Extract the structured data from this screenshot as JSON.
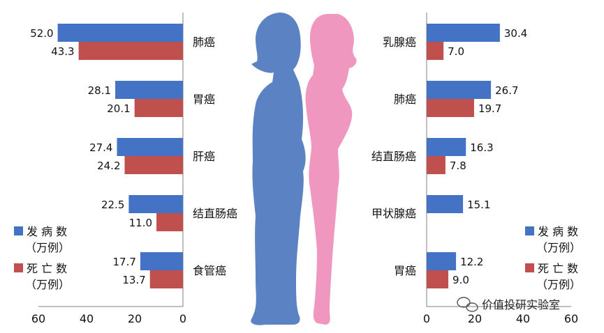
{
  "colors": {
    "incidence": "#4472C4",
    "death": "#C0504D",
    "male_figure": "#5B83C3",
    "female_figure": "#EF97BF",
    "axis": "#808080"
  },
  "legend": {
    "incidence_label": "发 病 数",
    "incidence_unit": "（万例）",
    "death_label": "死 亡 数",
    "death_unit": "（万例）"
  },
  "watermark": "价值投研实验室",
  "chart_data": [
    {
      "type": "bar",
      "orientation": "horizontal-mirrored",
      "subject": "male",
      "categories": [
        "肺癌",
        "胃癌",
        "肝癌",
        "结直肠癌",
        "食管癌"
      ],
      "series": [
        {
          "name": "发病数（万例）",
          "values": [
            52.0,
            28.1,
            27.4,
            22.5,
            17.7
          ]
        },
        {
          "name": "死亡数（万例）",
          "values": [
            43.3,
            20.1,
            24.2,
            11.0,
            13.7
          ]
        }
      ],
      "value_labels": {
        "incidence": [
          "52.0",
          "28.1",
          "27.4",
          "22.5",
          "17.7"
        ],
        "death": [
          "43.3",
          "20.1",
          "24.2",
          "11.0",
          "13.7"
        ]
      },
      "xlim": [
        60,
        0
      ],
      "xticks": [
        "60",
        "40",
        "20",
        "0"
      ],
      "legend_position": "bottom-left"
    },
    {
      "type": "bar",
      "orientation": "horizontal",
      "subject": "female",
      "categories": [
        "乳腺癌",
        "肺癌",
        "结直肠癌",
        "甲状腺癌",
        "胃癌"
      ],
      "series": [
        {
          "name": "发病数（万例）",
          "values": [
            30.4,
            26.7,
            16.3,
            15.1,
            12.2
          ]
        },
        {
          "name": "死亡数（万例）",
          "values": [
            7.0,
            19.7,
            7.8,
            null,
            9.0
          ]
        }
      ],
      "value_labels": {
        "incidence": [
          "30.4",
          "26.7",
          "16.3",
          "15.1",
          "12.2"
        ],
        "death": [
          "7.0",
          "19.7",
          "7.8",
          "",
          "9.0"
        ]
      },
      "xlim": [
        0,
        60
      ],
      "xticks": [
        "0",
        "20",
        "40",
        "60"
      ],
      "legend_position": "bottom-right"
    }
  ]
}
